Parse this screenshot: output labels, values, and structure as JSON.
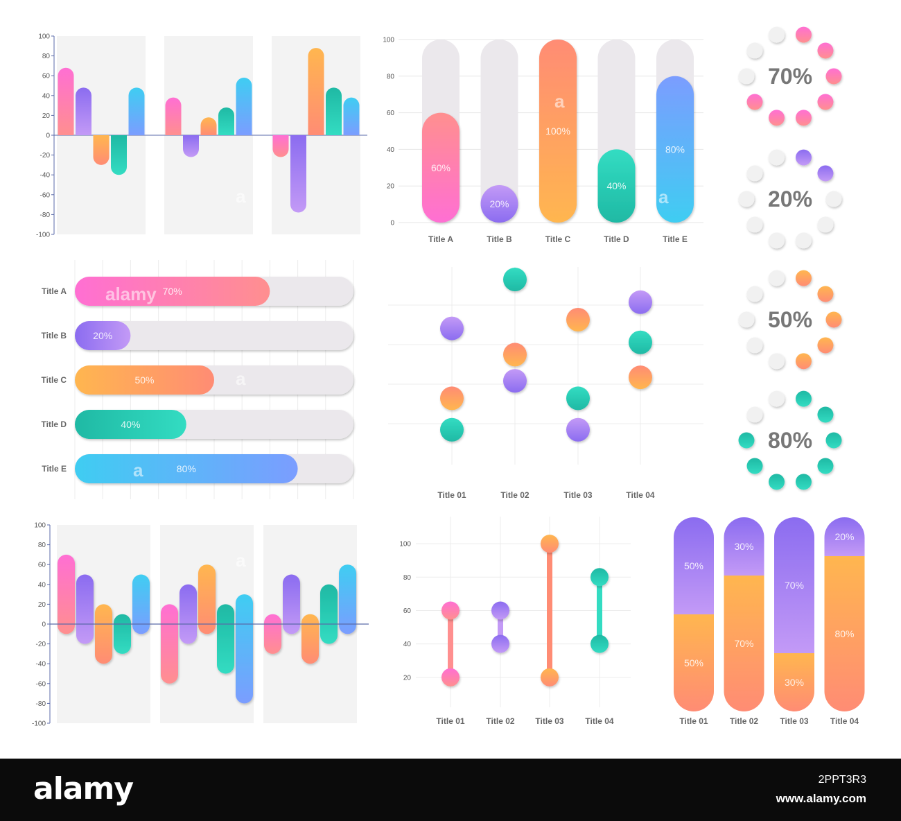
{
  "chart_data": [
    {
      "id": "top-left",
      "type": "bar",
      "ylim": [
        -100,
        100
      ],
      "yticks": [
        100,
        80,
        60,
        40,
        20,
        0,
        -20,
        -40,
        -60,
        -80,
        -100
      ],
      "groups": [
        {
          "values": [
            68,
            48,
            -30,
            -40,
            48
          ]
        },
        {
          "values": [
            38,
            -22,
            18,
            28,
            58
          ]
        },
        {
          "values": [
            -22,
            -78,
            88,
            48,
            38
          ]
        }
      ]
    },
    {
      "id": "top-middle",
      "type": "bar",
      "ylim": [
        0,
        100
      ],
      "yticks": [
        100,
        80,
        60,
        40,
        20,
        0
      ],
      "categories": [
        "Title A",
        "Title B",
        "Title C",
        "Title D",
        "Title E"
      ],
      "values": [
        60,
        20,
        100,
        40,
        80
      ],
      "labels": [
        "60%",
        "20%",
        "100%",
        "40%",
        "80%"
      ]
    },
    {
      "id": "middle-left",
      "type": "bar",
      "orientation": "horizontal",
      "categories": [
        "Title A",
        "Title B",
        "Title C",
        "Title D",
        "Title E"
      ],
      "values": [
        70,
        20,
        50,
        40,
        80
      ],
      "labels": [
        "70%",
        "20%",
        "50%",
        "40%",
        "80%"
      ]
    },
    {
      "id": "middle-center",
      "type": "scatter",
      "categories": [
        "Title 01",
        "Title 02",
        "Title 03",
        "Title 04"
      ],
      "ylim": [
        0,
        100
      ],
      "series": [
        {
          "color": "purple",
          "values": [
            70,
            40,
            12,
            85
          ]
        },
        {
          "color": "orange",
          "values": [
            30,
            55,
            75,
            42
          ]
        },
        {
          "color": "teal",
          "values": [
            12,
            98,
            30,
            62
          ]
        }
      ]
    },
    {
      "id": "rings",
      "type": "pie",
      "items": [
        {
          "value": 70,
          "label": "70%",
          "theme": "pink"
        },
        {
          "value": 20,
          "label": "20%",
          "theme": "purple"
        },
        {
          "value": 50,
          "label": "50%",
          "theme": "orange"
        },
        {
          "value": 80,
          "label": "80%",
          "theme": "teal"
        }
      ]
    },
    {
      "id": "bottom-left",
      "type": "bar",
      "subtype": "floating",
      "ylim": [
        -100,
        100
      ],
      "yticks": [
        100,
        80,
        60,
        40,
        20,
        0,
        -20,
        -40,
        -60,
        -80,
        -100
      ],
      "groups": [
        {
          "ranges": [
            [
              -10,
              70
            ],
            [
              -20,
              50
            ],
            [
              -40,
              20
            ],
            [
              -30,
              10
            ],
            [
              -10,
              50
            ]
          ]
        },
        {
          "ranges": [
            [
              -60,
              20
            ],
            [
              -20,
              40
            ],
            [
              -10,
              60
            ],
            [
              -50,
              20
            ],
            [
              -80,
              30
            ]
          ]
        },
        {
          "ranges": [
            [
              -30,
              10
            ],
            [
              -10,
              50
            ],
            [
              -40,
              10
            ],
            [
              -20,
              40
            ],
            [
              -10,
              60
            ]
          ]
        }
      ]
    },
    {
      "id": "bottom-middle",
      "type": "line",
      "subtype": "dumbbell",
      "categories": [
        "Title 01",
        "Title 02",
        "Title 03",
        "Title 04"
      ],
      "yticks": [
        100,
        80,
        60,
        40,
        20
      ],
      "ylim": [
        0,
        110
      ],
      "ranges": [
        [
          20,
          60
        ],
        [
          40,
          60
        ],
        [
          20,
          100
        ],
        [
          40,
          80
        ]
      ]
    },
    {
      "id": "bottom-right",
      "type": "bar",
      "subtype": "stacked-percent",
      "categories": [
        "Title 01",
        "Title 02",
        "Title 03",
        "Title 04"
      ],
      "series": [
        {
          "name": "",
          "values": [
            50,
            70,
            30,
            80
          ],
          "labels": [
            "50%",
            "70%",
            "30%",
            "80%"
          ]
        },
        {
          "name": "",
          "values": [
            50,
            30,
            70,
            20
          ],
          "labels": [
            "50%",
            "30%",
            "70%",
            "20%"
          ]
        }
      ]
    }
  ],
  "colors": {
    "pink": [
      "#ff6fd3",
      "#ff8f8f"
    ],
    "purple": [
      "#8b6cf0",
      "#c39af6"
    ],
    "orange": [
      "#ffb64f",
      "#ff8c74"
    ],
    "teal": [
      "#1fb9a4",
      "#33dcc2"
    ],
    "blue": [
      "#3fcdf2",
      "#7b9dff"
    ],
    "track": "#ebe8ec",
    "panel_bg": "#f3f3f3"
  },
  "footer": {
    "brand": "alamy",
    "stock_id": "2PPT3R3",
    "url": "www.alamy.com"
  },
  "watermarks": [
    "alamy",
    "a"
  ]
}
